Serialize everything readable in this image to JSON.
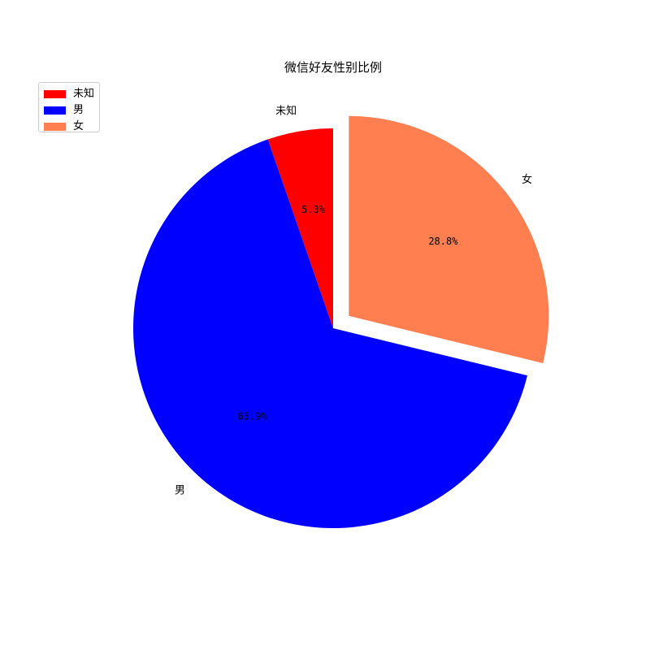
{
  "chart_data": {
    "type": "pie",
    "title": "微信好友性别比例",
    "start_angle_deg": 90,
    "direction": "counterclockwise",
    "legend_position": "upper-left",
    "slices": [
      {
        "label": "未知",
        "value": 5.3,
        "pct_label": "5.3%",
        "color": "#ff0000",
        "explode": 0
      },
      {
        "label": "男",
        "value": 65.9,
        "pct_label": "65.9%",
        "color": "#0000ff",
        "explode": 0
      },
      {
        "label": "女",
        "value": 28.8,
        "pct_label": "28.8%",
        "color": "#ff7f50",
        "explode": 0.1
      }
    ]
  }
}
